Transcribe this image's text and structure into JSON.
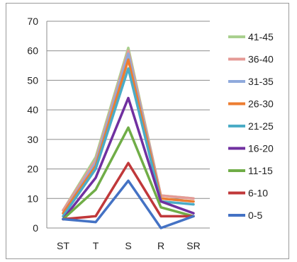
{
  "chart_data": {
    "type": "line",
    "categories": [
      "ST",
      "T",
      "S",
      "R",
      "SR"
    ],
    "ylim": [
      0,
      70
    ],
    "yticks": [
      0,
      10,
      20,
      30,
      40,
      50,
      60,
      70
    ],
    "grid": true,
    "legend_position": "right",
    "series": [
      {
        "name": "41-45",
        "color": "#a9d08e",
        "values": [
          6,
          24,
          61,
          11,
          10
        ]
      },
      {
        "name": "36-40",
        "color": "#e59a96",
        "values": [
          6,
          23,
          60,
          11,
          10
        ]
      },
      {
        "name": "31-35",
        "color": "#8faadc",
        "values": [
          5,
          22,
          59,
          10,
          9
        ]
      },
      {
        "name": "26-30",
        "color": "#ed7d31",
        "values": [
          5,
          21,
          57,
          10,
          9
        ]
      },
      {
        "name": "21-25",
        "color": "#4bacc6",
        "values": [
          4,
          20,
          54,
          9,
          8
        ]
      },
      {
        "name": "16-20",
        "color": "#7030a0",
        "values": [
          3,
          17,
          44,
          9,
          5
        ]
      },
      {
        "name": "11-15",
        "color": "#70ad47",
        "values": [
          3,
          13,
          34,
          7,
          4
        ]
      },
      {
        "name": "6-10",
        "color": "#c0383a",
        "values": [
          3,
          4,
          22,
          4,
          4
        ]
      },
      {
        "name": "0-5",
        "color": "#4472c4",
        "values": [
          3,
          2,
          16,
          0,
          4
        ]
      }
    ]
  }
}
